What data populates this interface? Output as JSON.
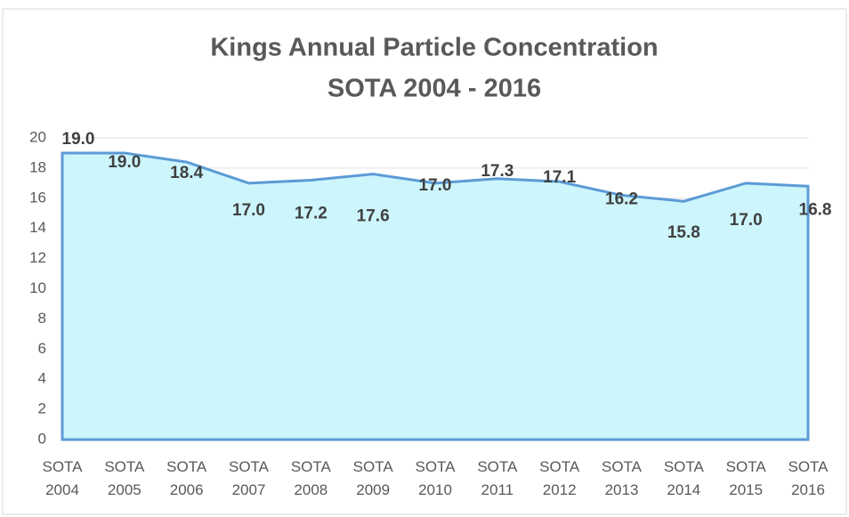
{
  "chart_data": {
    "type": "area",
    "title": "Kings Annual Particle Concentration",
    "subtitle": "SOTA 2004 - 2016",
    "categories": [
      "SOTA 2004",
      "SOTA 2005",
      "SOTA 2006",
      "SOTA 2007",
      "SOTA 2008",
      "SOTA 2009",
      "SOTA 2010",
      "SOTA 2011",
      "SOTA 2012",
      "SOTA 2013",
      "SOTA 2014",
      "SOTA 2015",
      "SOTA 2016"
    ],
    "values": [
      19,
      19,
      18.4,
      17,
      17.2,
      17.6,
      17,
      17.3,
      17.1,
      16.2,
      15.8,
      17,
      16.8
    ],
    "value_labels": [
      "19.0",
      "19.0",
      "18.4",
      "17.0",
      "17.2",
      "17.6",
      "17.0",
      "17.3",
      "17.1",
      "16.2",
      "15.8",
      "17.0",
      "16.8"
    ],
    "color": "#5b9bd5",
    "fill": "#ccf5fc",
    "ylim": [
      0,
      20
    ],
    "yticks": [
      0,
      2,
      4,
      6,
      8,
      10,
      12,
      14,
      16,
      18,
      20
    ],
    "grid": true
  }
}
